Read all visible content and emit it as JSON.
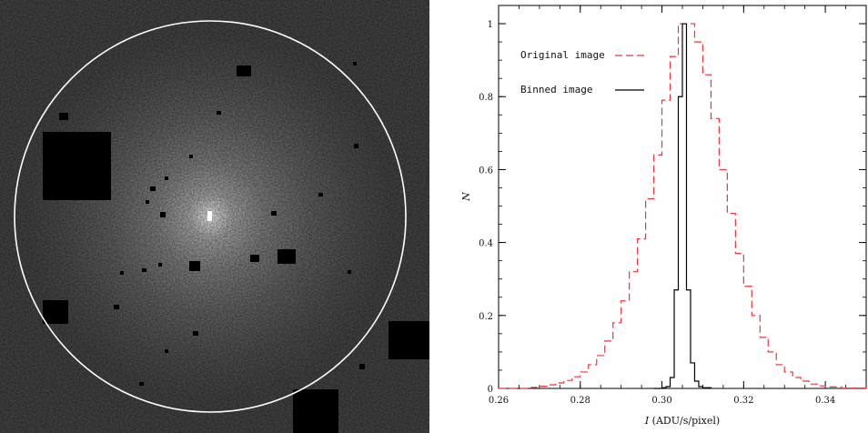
{
  "chart_data": [
    {
      "type": "image",
      "description_visible": "grayscale galaxy image with masked square regions and elliptical aperture"
    },
    {
      "type": "line",
      "title": "",
      "xlabel_italic": "I",
      "xlabel_rest": " (ADU/s/pixel)",
      "ylabel": "N",
      "xlim": [
        0.26,
        0.35
      ],
      "ylim": [
        0,
        1.05
      ],
      "x_ticks": [
        0.26,
        0.28,
        0.3,
        0.32,
        0.34
      ],
      "x_tick_labels": [
        "0.26",
        "0.28",
        "0.30",
        "0.32",
        "0.34"
      ],
      "y_ticks": [
        0,
        0.2,
        0.4,
        0.6,
        0.8,
        1
      ],
      "y_tick_labels": [
        "0",
        "0.2",
        "0.4",
        "0.6",
        "0.8",
        "1"
      ],
      "legend_placement": "top-left",
      "series": [
        {
          "name": "Original image",
          "color": "#e8383d",
          "dash": "dashed",
          "step": true,
          "x": [
            0.26,
            0.264,
            0.268,
            0.27,
            0.272,
            0.274,
            0.276,
            0.278,
            0.28,
            0.282,
            0.284,
            0.286,
            0.288,
            0.29,
            0.292,
            0.294,
            0.296,
            0.298,
            0.3,
            0.302,
            0.304,
            0.306,
            0.308,
            0.31,
            0.312,
            0.314,
            0.316,
            0.318,
            0.32,
            0.322,
            0.324,
            0.326,
            0.328,
            0.33,
            0.332,
            0.334,
            0.336,
            0.338,
            0.34,
            0.344,
            0.35
          ],
          "y": [
            0.0,
            0.0,
            0.003,
            0.006,
            0.01,
            0.015,
            0.022,
            0.032,
            0.045,
            0.065,
            0.09,
            0.13,
            0.18,
            0.24,
            0.32,
            0.41,
            0.52,
            0.64,
            0.79,
            0.91,
            1.0,
            1.0,
            0.95,
            0.86,
            0.74,
            0.6,
            0.48,
            0.37,
            0.28,
            0.2,
            0.14,
            0.1,
            0.065,
            0.045,
            0.03,
            0.02,
            0.012,
            0.007,
            0.004,
            0.001,
            0.0
          ]
        },
        {
          "name": "Binned image",
          "color": "#000000",
          "dash": "solid",
          "step": true,
          "x": [
            0.298,
            0.3,
            0.301,
            0.302,
            0.303,
            0.304,
            0.305,
            0.306,
            0.307,
            0.308,
            0.309,
            0.31,
            0.312
          ],
          "y": [
            0.0,
            0.002,
            0.005,
            0.03,
            0.27,
            0.8,
            1.0,
            0.27,
            0.07,
            0.02,
            0.005,
            0.002,
            0.0
          ]
        }
      ]
    }
  ]
}
